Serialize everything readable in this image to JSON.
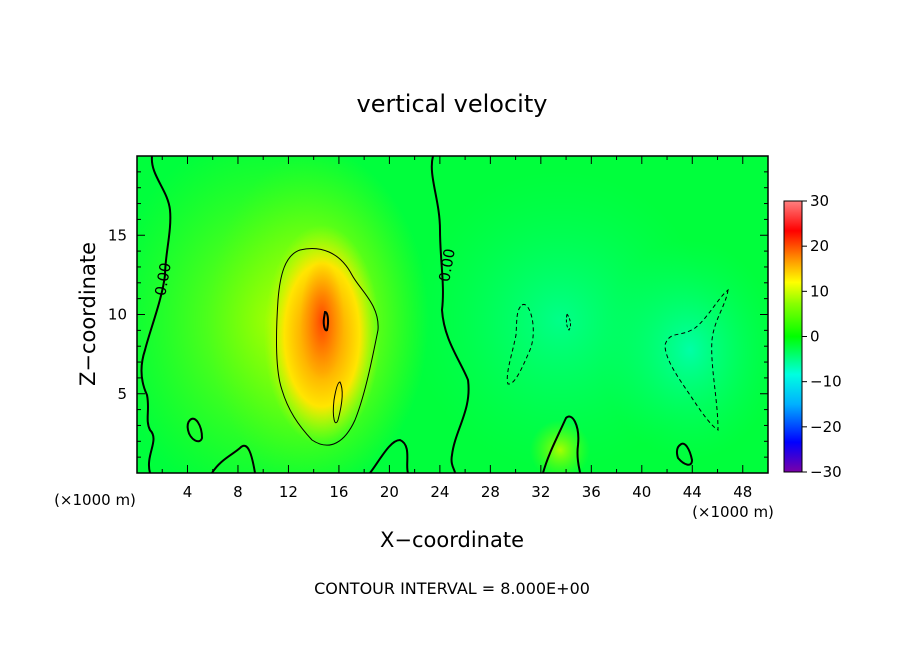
{
  "chart_data": {
    "type": "heatmap",
    "title": "vertical velocity",
    "xlabel": "X−coordinate",
    "ylabel": "Z−coordinate",
    "x_unit_left": "(×1000 m)",
    "x_unit_right": "(×1000 m)",
    "xlim": [
      0,
      50
    ],
    "ylim": [
      0,
      20
    ],
    "xticks": [
      4,
      8,
      12,
      16,
      20,
      24,
      28,
      32,
      36,
      40,
      44,
      48
    ],
    "yticks": [
      5,
      10,
      15
    ],
    "footer": "CONTOUR INTERVAL = 8.000E+00",
    "contour_labels": [
      "0.00",
      "0.00"
    ],
    "colorbar": {
      "min": -30,
      "max": 30,
      "ticks": [
        30,
        20,
        10,
        0,
        -10,
        -20,
        -30
      ],
      "tick_labels": [
        "30",
        "20",
        "10",
        "0",
        "−10",
        "−20",
        "−30"
      ],
      "colors": [
        "#7a00a8",
        "#0000ff",
        "#00b0ff",
        "#00ffe0",
        "#00ff00",
        "#88ff00",
        "#ffff00",
        "#ff9900",
        "#ff0000",
        "#ff8080"
      ]
    },
    "background_color": "#00ff3c"
  }
}
